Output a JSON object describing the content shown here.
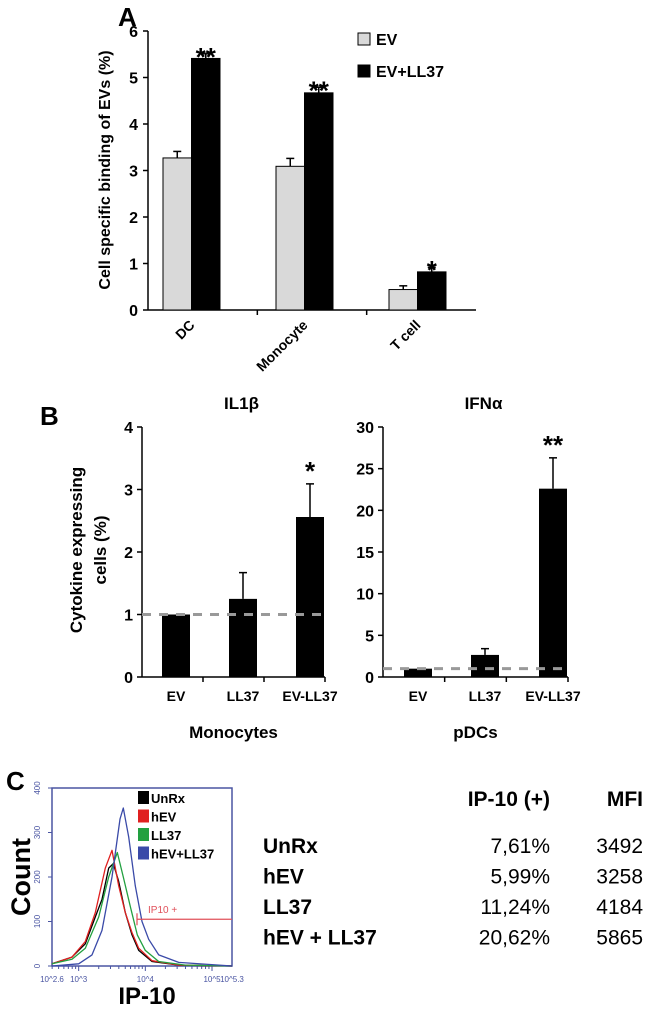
{
  "panel_letters": {
    "a": "A",
    "b": "B",
    "c": "C"
  },
  "chart_data": [
    {
      "panel": "A",
      "type": "bar",
      "ylabel": "Cell specific binding of EVs (%)",
      "ylim": [
        0,
        6
      ],
      "yticks": [
        "0",
        "1",
        "2",
        "3",
        "4",
        "5",
        "6"
      ],
      "categories": [
        "DC",
        "Monocyte",
        "T cell"
      ],
      "series": [
        {
          "name": "EV",
          "color": "#d9d9d9",
          "values": [
            3.27,
            3.09,
            0.44
          ],
          "errors": [
            0.14,
            0.17,
            0.08
          ]
        },
        {
          "name": "EV+LL37",
          "color": "#000000",
          "values": [
            5.41,
            4.67,
            0.82
          ],
          "errors": [
            0.1,
            0.12,
            0.1
          ]
        }
      ],
      "significance": [
        "**",
        "**",
        "*"
      ],
      "legend_position": "top-right"
    },
    {
      "panel": "B",
      "type": "bar",
      "title": "IL1β",
      "ylabel": [
        "Cytokine expressing",
        "cells (%)"
      ],
      "xlabel": "Monocytes",
      "ylim": [
        0,
        4
      ],
      "yticks": [
        "0",
        "1",
        "2",
        "3",
        "4"
      ],
      "categories": [
        "EV",
        "LL37",
        "EV-LL37"
      ],
      "values": [
        1.0,
        1.25,
        2.56
      ],
      "errors": [
        0,
        0.42,
        0.53
      ],
      "significance": [
        "",
        "",
        "*"
      ],
      "reference_line": 1,
      "color": "#000000",
      "reference_color": "#999999"
    },
    {
      "panel": "B",
      "type": "bar",
      "title": "IFNα",
      "xlabel": "pDCs",
      "ylim": [
        0,
        30
      ],
      "yticks": [
        "0",
        "5",
        "10",
        "15",
        "20",
        "25",
        "30"
      ],
      "categories": [
        "EV",
        "LL37",
        "EV-LL37"
      ],
      "values": [
        1.0,
        2.65,
        22.6
      ],
      "errors": [
        0,
        0.75,
        3.7
      ],
      "significance": [
        "",
        "",
        "**"
      ],
      "reference_line": 1,
      "color": "#000000",
      "reference_color": "#999999"
    },
    {
      "panel": "C",
      "type": "line",
      "xlabel": "IP-10",
      "ylabel": "Count",
      "xscale": "log",
      "xlim": [
        2.6,
        5.3
      ],
      "ylim": [
        0,
        400
      ],
      "xticks": [
        {
          "v": 2.6,
          "label": "10^2.6"
        },
        {
          "v": 3,
          "label": "10^3"
        },
        {
          "v": 4,
          "label": "10^4"
        },
        {
          "v": 5,
          "label": "10^5"
        },
        {
          "v": 5.3,
          "label": "10^5.3"
        }
      ],
      "yticks": [
        "0",
        "100",
        "200",
        "300",
        "400"
      ],
      "axis_color": "#4a55a2",
      "gate": {
        "label": "IP10 +",
        "from": 3.875,
        "to": 5.3,
        "count": 105,
        "color": "#e0505a"
      },
      "legend_position": "top-right",
      "series": [
        {
          "name": "UnRx",
          "color": "#000000",
          "points": [
            [
              2.6,
              5
            ],
            [
              2.9,
              20
            ],
            [
              3.1,
              50
            ],
            [
              3.25,
              110
            ],
            [
              3.35,
              150
            ],
            [
              3.45,
              220
            ],
            [
              3.52,
              230
            ],
            [
              3.6,
              190
            ],
            [
              3.7,
              120
            ],
            [
              3.8,
              70
            ],
            [
              3.9,
              35
            ],
            [
              4.1,
              10
            ],
            [
              4.5,
              2
            ],
            [
              5.3,
              0
            ]
          ]
        },
        {
          "name": "hEV",
          "color": "#e02020",
          "points": [
            [
              2.6,
              5
            ],
            [
              2.9,
              20
            ],
            [
              3.1,
              55
            ],
            [
              3.25,
              120
            ],
            [
              3.4,
              220
            ],
            [
              3.5,
              260
            ],
            [
              3.6,
              180
            ],
            [
              3.7,
              120
            ],
            [
              3.8,
              75
            ],
            [
              3.9,
              40
            ],
            [
              4.1,
              12
            ],
            [
              4.5,
              2
            ],
            [
              5.3,
              0
            ]
          ]
        },
        {
          "name": "LL37",
          "color": "#22a040",
          "points": [
            [
              2.6,
              5
            ],
            [
              2.9,
              15
            ],
            [
              3.1,
              40
            ],
            [
              3.3,
              110
            ],
            [
              3.45,
              200
            ],
            [
              3.58,
              255
            ],
            [
              3.67,
              200
            ],
            [
              3.78,
              130
            ],
            [
              3.88,
              70
            ],
            [
              4.0,
              35
            ],
            [
              4.2,
              10
            ],
            [
              4.6,
              2
            ],
            [
              5.3,
              0
            ]
          ]
        },
        {
          "name": "hEV+LL37",
          "color": "#3a4aa8",
          "points": [
            [
              2.6,
              0
            ],
            [
              3.0,
              5
            ],
            [
              3.2,
              25
            ],
            [
              3.35,
              80
            ],
            [
              3.5,
              200
            ],
            [
              3.62,
              330
            ],
            [
              3.67,
              355
            ],
            [
              3.75,
              290
            ],
            [
              3.85,
              180
            ],
            [
              3.95,
              100
            ],
            [
              4.05,
              60
            ],
            [
              4.2,
              25
            ],
            [
              4.5,
              8
            ],
            [
              5.3,
              0
            ]
          ]
        }
      ]
    },
    {
      "panel": "C",
      "type": "table",
      "columns": [
        "",
        "IP-10 (+)",
        "MFI"
      ],
      "rows": [
        [
          "UnRx",
          "7,61%",
          "3492"
        ],
        [
          "hEV",
          "5,99%",
          "3258"
        ],
        [
          "LL37",
          "11,24%",
          "4184"
        ],
        [
          "hEV + LL37",
          "20,62%",
          "5865"
        ]
      ]
    }
  ]
}
